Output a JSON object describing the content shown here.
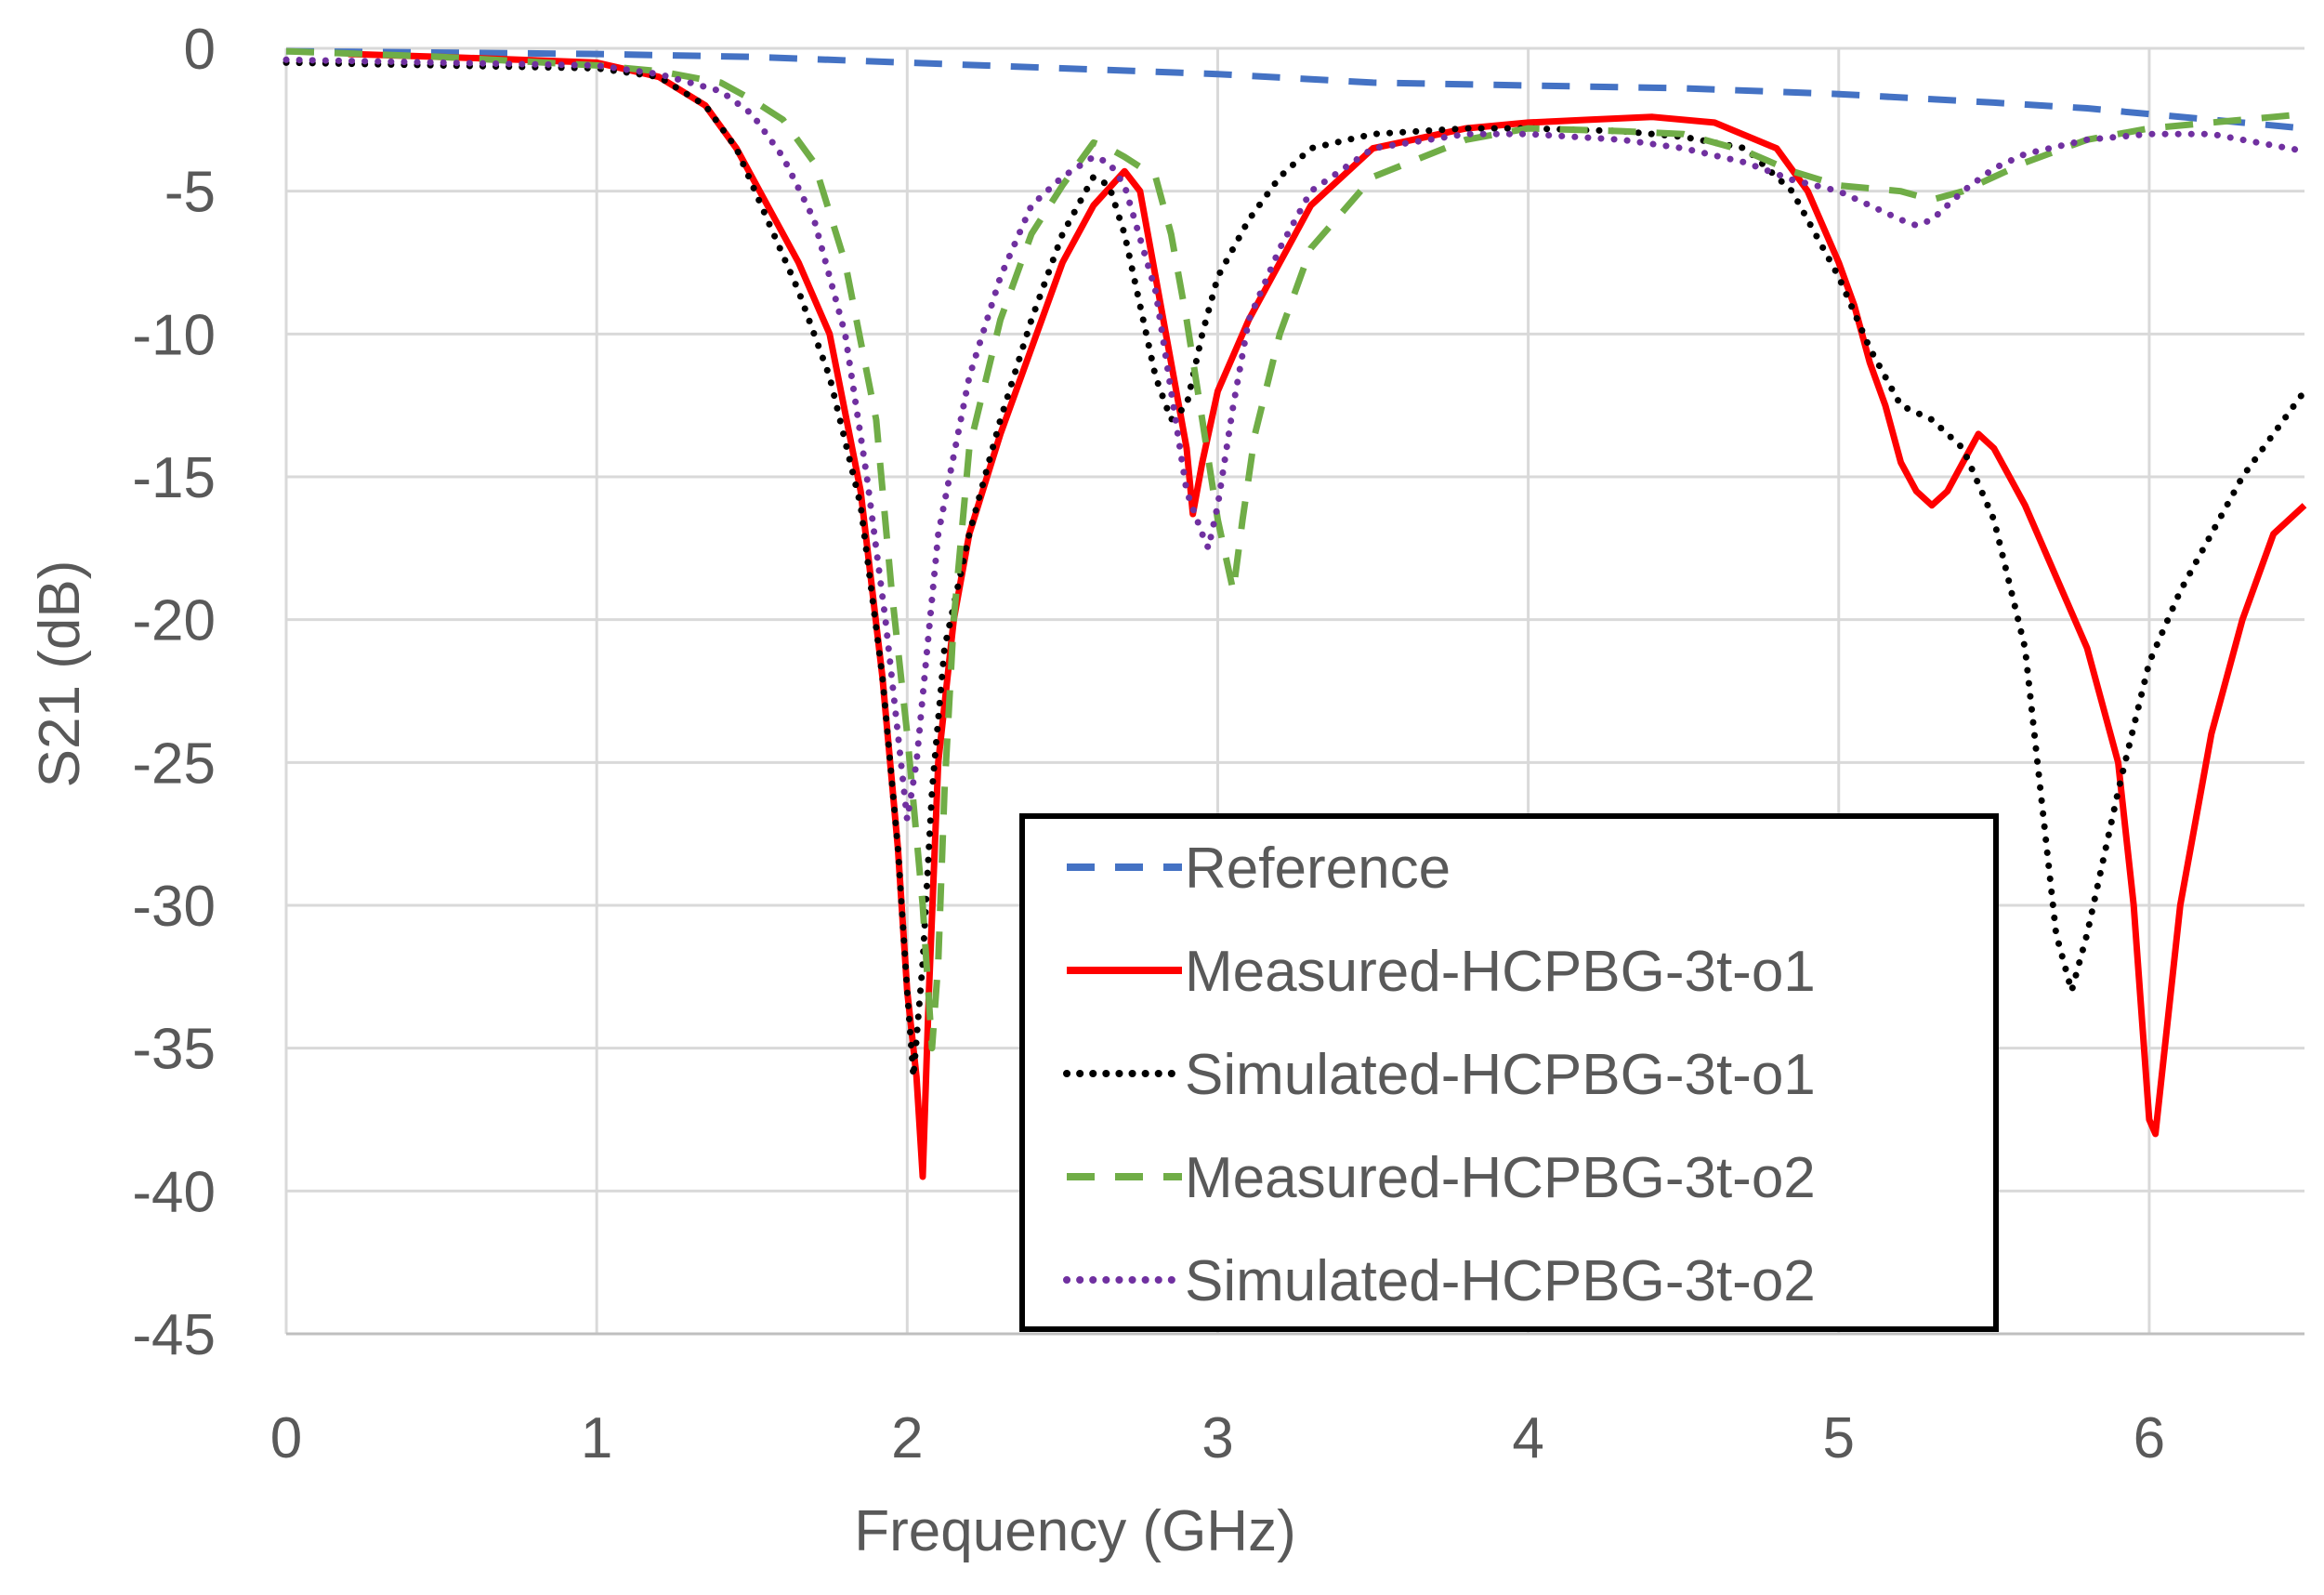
{
  "chart_data": {
    "type": "line",
    "title": "",
    "xlabel": "Frequency (GHz)",
    "ylabel": "S21 (dB)",
    "xlim": [
      0,
      6.5
    ],
    "ylim": [
      -45,
      0
    ],
    "xticks": [
      0,
      1,
      2,
      3,
      4,
      5,
      6
    ],
    "yticks": [
      0,
      -5,
      -10,
      -15,
      -20,
      -25,
      -30,
      -35,
      -40,
      -45
    ],
    "grid": true,
    "legend_position": "bottom-center",
    "series": [
      {
        "name": "Reference",
        "color": "#4472C4",
        "dash": "dashed",
        "x": [
          0,
          0.5,
          1.0,
          1.5,
          2.0,
          2.5,
          3.0,
          3.5,
          4.0,
          4.5,
          5.0,
          5.5,
          5.8,
          6.0,
          6.2,
          6.5
        ],
        "y": [
          -0.1,
          -0.15,
          -0.2,
          -0.3,
          -0.5,
          -0.7,
          -0.9,
          -1.2,
          -1.3,
          -1.4,
          -1.6,
          -1.9,
          -2.1,
          -2.3,
          -2.5,
          -2.8
        ]
      },
      {
        "name": "Measured-HCPBG-3t-o1",
        "color": "#FF0000",
        "dash": "solid",
        "x": [
          0.2,
          0.5,
          1.0,
          1.2,
          1.35,
          1.45,
          1.55,
          1.65,
          1.75,
          1.85,
          1.92,
          1.97,
          2.0,
          2.03,
          2.05,
          2.07,
          2.1,
          2.15,
          2.2,
          2.3,
          2.4,
          2.5,
          2.6,
          2.7,
          2.75,
          2.8,
          2.85,
          2.9,
          2.92,
          2.95,
          3.0,
          3.1,
          3.2,
          3.3,
          3.5,
          3.8,
          4.0,
          4.2,
          4.4,
          4.6,
          4.8,
          4.9,
          5.0,
          5.05,
          5.1,
          5.15,
          5.2,
          5.25,
          5.3,
          5.35,
          5.4,
          5.45,
          5.5,
          5.55,
          5.6,
          5.7,
          5.8,
          5.9,
          5.95,
          6.0,
          6.02,
          6.05,
          6.1,
          6.2,
          6.3,
          6.4,
          6.5
        ],
        "y": [
          -0.2,
          -0.3,
          -0.5,
          -1.0,
          -2.0,
          -3.5,
          -5.5,
          -7.5,
          -10.0,
          -15.5,
          -22.0,
          -28.0,
          -33.0,
          -36.0,
          -39.5,
          -33.0,
          -25.0,
          -20.0,
          -17.0,
          -13.5,
          -10.5,
          -7.5,
          -5.5,
          -4.3,
          -5.0,
          -8.0,
          -11.0,
          -14.0,
          -16.3,
          -14.5,
          -12.0,
          -9.5,
          -7.5,
          -5.5,
          -3.5,
          -2.8,
          -2.6,
          -2.5,
          -2.4,
          -2.6,
          -3.5,
          -5.0,
          -7.5,
          -9.0,
          -11.0,
          -12.5,
          -14.5,
          -15.5,
          -16.0,
          -15.5,
          -14.5,
          -13.5,
          -14.0,
          -15.0,
          -16.0,
          -18.5,
          -21.0,
          -25.0,
          -30.0,
          -37.5,
          -38.0,
          -35.0,
          -30.0,
          -24.0,
          -20.0,
          -17.0,
          -16.0
        ]
      },
      {
        "name": "Simulated-HCPBG-3t-o1",
        "color": "#000000",
        "dash": "dotted",
        "x": [
          0,
          0.5,
          1.0,
          1.2,
          1.35,
          1.45,
          1.55,
          1.65,
          1.75,
          1.85,
          1.92,
          1.97,
          2.0,
          2.02,
          2.05,
          2.08,
          2.12,
          2.2,
          2.3,
          2.4,
          2.5,
          2.6,
          2.65,
          2.7,
          2.75,
          2.8,
          2.85,
          2.9,
          2.95,
          3.0,
          3.1,
          3.2,
          3.3,
          3.5,
          3.8,
          4.0,
          4.3,
          4.5,
          4.7,
          4.85,
          5.0,
          5.1,
          5.2,
          5.3,
          5.4,
          5.5,
          5.6,
          5.65,
          5.7,
          5.75,
          5.8,
          5.9,
          6.0,
          6.1,
          6.2,
          6.3,
          6.4,
          6.5
        ],
        "y": [
          -0.5,
          -0.6,
          -0.7,
          -1.0,
          -2.0,
          -3.5,
          -6.0,
          -8.5,
          -11.5,
          -16.0,
          -22.0,
          -28.0,
          -33.0,
          -36.0,
          -32.0,
          -26.0,
          -21.0,
          -17.0,
          -13.0,
          -9.5,
          -6.5,
          -4.5,
          -4.8,
          -6.5,
          -9.0,
          -11.5,
          -13.0,
          -12.5,
          -10.0,
          -8.0,
          -6.0,
          -4.5,
          -3.5,
          -3.0,
          -2.8,
          -2.8,
          -2.9,
          -3.1,
          -3.5,
          -5.0,
          -8.0,
          -10.5,
          -12.5,
          -13.0,
          -14.0,
          -16.5,
          -21.0,
          -26.0,
          -31.0,
          -33.0,
          -31.0,
          -26.0,
          -21.5,
          -19.0,
          -17.0,
          -15.0,
          -13.5,
          -12.0
        ]
      },
      {
        "name": "Measured-HCPBG-3t-o2",
        "color": "#70AD47",
        "dash": "dashed",
        "x": [
          0,
          0.5,
          1.0,
          1.2,
          1.4,
          1.5,
          1.6,
          1.7,
          1.8,
          1.9,
          1.95,
          2.0,
          2.05,
          2.08,
          2.1,
          2.12,
          2.15,
          2.2,
          2.3,
          2.4,
          2.5,
          2.6,
          2.65,
          2.7,
          2.8,
          2.85,
          2.9,
          2.95,
          3.0,
          3.03,
          3.05,
          3.08,
          3.12,
          3.2,
          3.3,
          3.5,
          3.8,
          4.0,
          4.3,
          4.5,
          4.7,
          4.85,
          5.0,
          5.2,
          5.3,
          5.4,
          5.5,
          5.6,
          5.8,
          6.0,
          6.2,
          6.4,
          6.5
        ],
        "y": [
          -0.1,
          -0.3,
          -0.6,
          -0.8,
          -1.2,
          -1.8,
          -2.5,
          -4.0,
          -7.5,
          -13.0,
          -19.0,
          -24.0,
          -30.0,
          -35.0,
          -32.0,
          -26.0,
          -20.0,
          -14.0,
          -9.5,
          -6.5,
          -4.8,
          -3.3,
          -3.5,
          -3.8,
          -4.5,
          -6.5,
          -9.5,
          -13.0,
          -16.5,
          -18.0,
          -19.0,
          -16.5,
          -13.5,
          -10.0,
          -7.0,
          -4.5,
          -3.2,
          -2.8,
          -2.9,
          -3.0,
          -3.6,
          -4.3,
          -4.8,
          -5.0,
          -5.3,
          -5.0,
          -4.5,
          -4.0,
          -3.2,
          -2.8,
          -2.6,
          -2.4,
          -2.3
        ]
      },
      {
        "name": "Simulated-HCPBG-3t-o2",
        "color": "#7030A0",
        "dash": "dotted",
        "x": [
          0,
          0.5,
          1.0,
          1.2,
          1.4,
          1.5,
          1.6,
          1.7,
          1.8,
          1.87,
          1.93,
          1.97,
          2.0,
          2.03,
          2.06,
          2.1,
          2.2,
          2.3,
          2.4,
          2.5,
          2.6,
          2.65,
          2.7,
          2.8,
          2.85,
          2.9,
          2.95,
          2.97,
          3.0,
          3.05,
          3.1,
          3.2,
          3.3,
          3.5,
          3.8,
          4.0,
          4.3,
          4.5,
          4.7,
          4.85,
          5.0,
          5.1,
          5.2,
          5.25,
          5.3,
          5.4,
          5.5,
          5.6,
          5.8,
          6.0,
          6.2,
          6.4,
          6.5
        ],
        "y": [
          -0.4,
          -0.5,
          -0.6,
          -0.9,
          -1.5,
          -2.3,
          -3.8,
          -6.0,
          -10.0,
          -15.0,
          -20.0,
          -24.0,
          -27.0,
          -25.0,
          -21.5,
          -17.0,
          -11.5,
          -8.0,
          -5.5,
          -4.5,
          -3.8,
          -4.0,
          -4.8,
          -8.5,
          -12.0,
          -15.5,
          -17.0,
          -17.5,
          -16.0,
          -12.5,
          -9.5,
          -7.0,
          -5.0,
          -3.5,
          -3.0,
          -3.0,
          -3.2,
          -3.5,
          -4.0,
          -4.6,
          -5.0,
          -5.5,
          -6.0,
          -6.2,
          -6.0,
          -5.0,
          -4.2,
          -3.7,
          -3.2,
          -3.0,
          -3.0,
          -3.4,
          -3.6
        ]
      }
    ]
  }
}
